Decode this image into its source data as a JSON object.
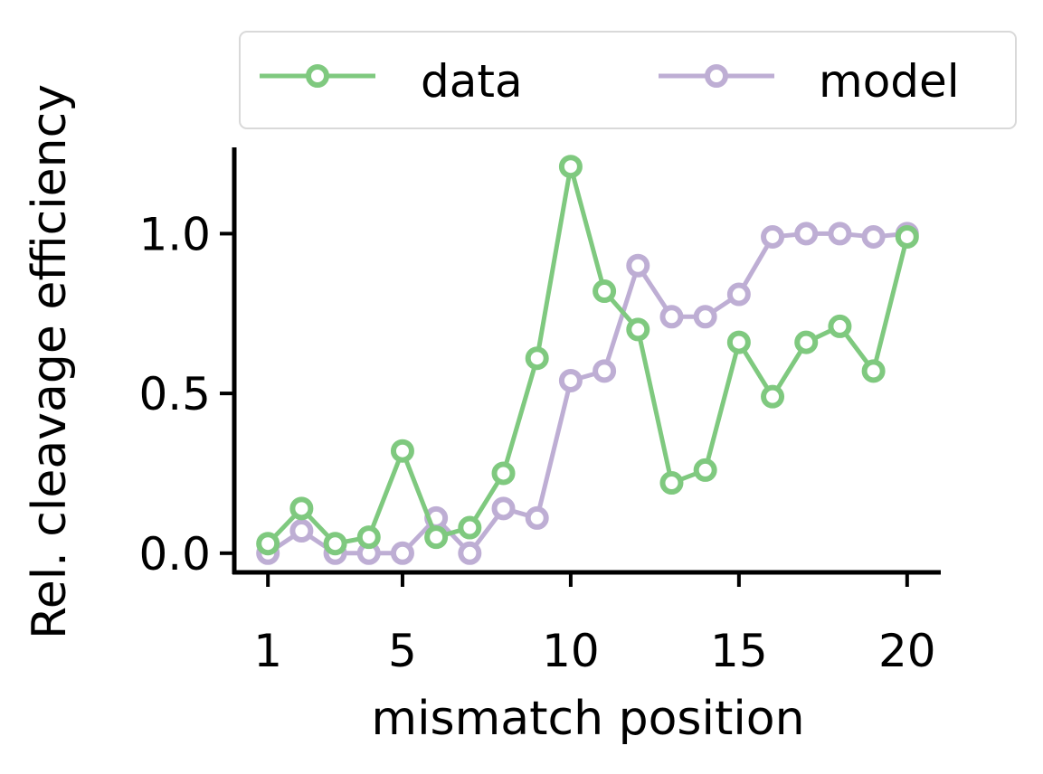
{
  "chart_data": {
    "type": "line",
    "xlabel": "mismatch position",
    "ylabel": "Rel. cleavage efficiency",
    "x": [
      1,
      2,
      3,
      4,
      5,
      6,
      7,
      8,
      9,
      10,
      11,
      12,
      13,
      14,
      15,
      16,
      17,
      18,
      19,
      20
    ],
    "xticks": [
      1,
      5,
      10,
      15,
      20
    ],
    "yticks": [
      0.0,
      0.5,
      1.0
    ],
    "ytick_labels": [
      "0.0",
      "0.5",
      "1.0"
    ],
    "xlim": [
      0,
      21
    ],
    "ylim": [
      -0.06,
      1.27
    ],
    "grid": false,
    "legend_position": "top",
    "series": [
      {
        "name": "data",
        "color": "#7fc97f",
        "values": [
          0.03,
          0.14,
          0.03,
          0.05,
          0.32,
          0.05,
          0.08,
          0.25,
          0.61,
          1.21,
          0.82,
          0.7,
          0.22,
          0.26,
          0.66,
          0.49,
          0.66,
          0.71,
          0.57,
          0.99
        ]
      },
      {
        "name": "model",
        "color": "#beaed4",
        "values": [
          0.0,
          0.07,
          0.0,
          0.0,
          0.0,
          0.11,
          0.0,
          0.14,
          0.11,
          0.54,
          0.57,
          0.9,
          0.74,
          0.74,
          0.81,
          0.99,
          1.0,
          1.0,
          0.99,
          1.0
        ]
      }
    ]
  }
}
